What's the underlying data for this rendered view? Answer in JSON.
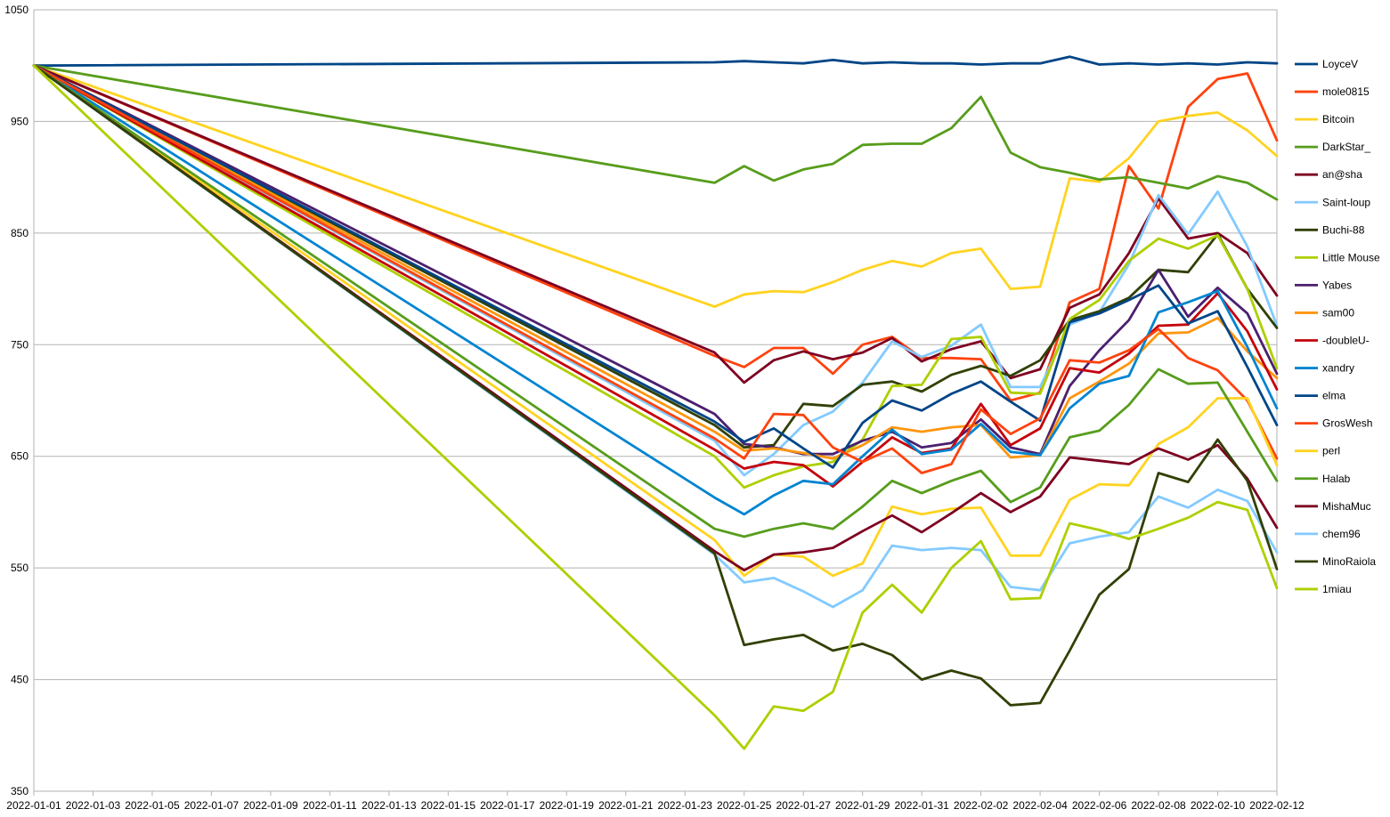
{
  "chart_data": {
    "type": "line",
    "title": "",
    "xlabel": "",
    "ylabel": "",
    "ylim": [
      350,
      1050
    ],
    "yticks": [
      350,
      450,
      550,
      650,
      750,
      850,
      950,
      1050
    ],
    "xticks": [
      "2022-01-01",
      "2022-01-03",
      "2022-01-05",
      "2022-01-07",
      "2022-01-09",
      "2022-01-11",
      "2022-01-13",
      "2022-01-15",
      "2022-01-17",
      "2022-01-19",
      "2022-01-21",
      "2022-01-23",
      "2022-01-25",
      "2022-01-27",
      "2022-01-29",
      "2022-01-31",
      "2022-02-02",
      "2022-02-04",
      "2022-02-06",
      "2022-02-08",
      "2022-02-10",
      "2022-02-12"
    ],
    "xlim": [
      "2022-01-01",
      "2022-02-12"
    ],
    "grid": true,
    "legend_position": "right",
    "x": [
      "2022-01-01",
      "2022-01-24",
      "2022-01-25",
      "2022-01-26",
      "2022-01-27",
      "2022-01-28",
      "2022-01-29",
      "2022-01-30",
      "2022-01-31",
      "2022-02-01",
      "2022-02-02",
      "2022-02-03",
      "2022-02-04",
      "2022-02-05",
      "2022-02-06",
      "2022-02-07",
      "2022-02-08",
      "2022-02-09",
      "2022-02-10",
      "2022-02-11",
      "2022-02-12"
    ],
    "series": [
      {
        "name": "LoyceV",
        "color": "#004586",
        "values": [
          1000,
          1003,
          1004,
          1003,
          1002,
          1005,
          1002,
          1003,
          1002,
          1002,
          1001,
          1002,
          1002,
          1008,
          1001,
          1002,
          1001,
          1002,
          1001,
          1003,
          1002
        ]
      },
      {
        "name": "mole0815",
        "color": "#ff420e",
        "values": [
          1000,
          740,
          730,
          747,
          747,
          724,
          750,
          757,
          738,
          738,
          737,
          700,
          707,
          788,
          800,
          910,
          872,
          963,
          988,
          993,
          933
        ]
      },
      {
        "name": "Bitcoin",
        "color": "#ffd320",
        "values": [
          1000,
          784,
          795,
          798,
          797,
          806,
          817,
          825,
          820,
          832,
          836,
          800,
          802,
          899,
          896,
          917,
          950,
          955,
          958,
          942,
          919
        ]
      },
      {
        "name": "DarkStar_",
        "color": "#579d1c",
        "values": [
          1000,
          895,
          910,
          897,
          907,
          912,
          929,
          930,
          930,
          944,
          972,
          922,
          909,
          904,
          898,
          900,
          895,
          890,
          901,
          895,
          880
        ]
      },
      {
        "name": "an@sha",
        "color": "#7e0021",
        "values": [
          1000,
          743,
          716,
          736,
          744,
          737,
          743,
          756,
          735,
          746,
          753,
          720,
          728,
          783,
          795,
          832,
          881,
          845,
          850,
          832,
          794
        ]
      },
      {
        "name": "Saint-loup",
        "color": "#83caff",
        "values": [
          1000,
          664,
          633,
          652,
          678,
          690,
          716,
          753,
          739,
          749,
          768,
          712,
          712,
          768,
          779,
          822,
          884,
          849,
          887,
          838,
          767
        ]
      },
      {
        "name": "Buchi-88",
        "color": "#314004",
        "values": [
          1000,
          678,
          658,
          660,
          697,
          695,
          714,
          717,
          708,
          723,
          731,
          722,
          736,
          772,
          780,
          792,
          817,
          815,
          849,
          800,
          765
        ]
      },
      {
        "name": "Little Mouse",
        "color": "#aecf00",
        "values": [
          1000,
          650,
          622,
          633,
          641,
          645,
          665,
          713,
          714,
          755,
          757,
          707,
          706,
          773,
          790,
          825,
          845,
          836,
          848,
          800,
          729
        ]
      },
      {
        "name": "Yabes",
        "color": "#4b1f6f",
        "values": [
          1000,
          688,
          661,
          658,
          652,
          652,
          664,
          672,
          658,
          662,
          683,
          658,
          652,
          713,
          745,
          772,
          817,
          775,
          801,
          778,
          724
        ]
      },
      {
        "name": "sam00",
        "color": "#ff950e",
        "values": [
          1000,
          672,
          655,
          657,
          653,
          648,
          660,
          676,
          672,
          676,
          678,
          649,
          651,
          702,
          717,
          733,
          760,
          761,
          774,
          744,
          720
        ]
      },
      {
        "name": "-doubleU-",
        "color": "#c5000b",
        "values": [
          1000,
          656,
          639,
          645,
          642,
          623,
          645,
          667,
          653,
          657,
          697,
          660,
          675,
          729,
          725,
          742,
          767,
          768,
          796,
          762,
          710
        ]
      },
      {
        "name": "xandry",
        "color": "#0084d1",
        "values": [
          1000,
          613,
          598,
          615,
          628,
          625,
          650,
          674,
          652,
          656,
          679,
          654,
          651,
          693,
          715,
          722,
          779,
          788,
          798,
          748,
          693
        ]
      },
      {
        "name": "elma",
        "color": "#004586",
        "values": [
          1000,
          681,
          663,
          675,
          657,
          640,
          680,
          700,
          691,
          706,
          717,
          699,
          682,
          770,
          778,
          790,
          803,
          769,
          780,
          730,
          678
        ]
      },
      {
        "name": "GrosWesh",
        "color": "#ff420e",
        "values": [
          1000,
          666,
          648,
          688,
          687,
          658,
          645,
          657,
          635,
          643,
          692,
          670,
          684,
          736,
          734,
          745,
          764,
          738,
          727,
          700,
          648
        ]
      },
      {
        "name": "perl",
        "color": "#ffd320",
        "values": [
          1000,
          575,
          543,
          562,
          560,
          543,
          554,
          605,
          598,
          603,
          604,
          561,
          561,
          611,
          625,
          624,
          661,
          676,
          702,
          702,
          642
        ]
      },
      {
        "name": "Halab",
        "color": "#579d1c",
        "values": [
          1000,
          585,
          578,
          585,
          590,
          585,
          605,
          628,
          617,
          628,
          637,
          609,
          622,
          667,
          673,
          696,
          728,
          715,
          716,
          672,
          628
        ]
      },
      {
        "name": "MishaMuc",
        "color": "#7e0021",
        "values": [
          1000,
          565,
          548,
          562,
          564,
          568,
          583,
          597,
          582,
          599,
          617,
          600,
          614,
          649,
          646,
          643,
          657,
          647,
          660,
          630,
          586
        ]
      },
      {
        "name": "chem96",
        "color": "#83caff",
        "values": [
          1000,
          562,
          537,
          541,
          529,
          515,
          530,
          570,
          566,
          568,
          566,
          533,
          530,
          572,
          578,
          582,
          614,
          604,
          620,
          610,
          564
        ]
      },
      {
        "name": "MinoRaiola",
        "color": "#314004",
        "values": [
          1000,
          563,
          481,
          486,
          490,
          476,
          482,
          472,
          450,
          458,
          451,
          427,
          429,
          476,
          526,
          549,
          635,
          627,
          665,
          628,
          549
        ]
      },
      {
        "name": "1miau",
        "color": "#aecf00",
        "values": [
          1000,
          418,
          388,
          426,
          422,
          439,
          510,
          535,
          510,
          550,
          574,
          522,
          523,
          590,
          584,
          576,
          585,
          595,
          609,
          602,
          532
        ]
      }
    ]
  }
}
